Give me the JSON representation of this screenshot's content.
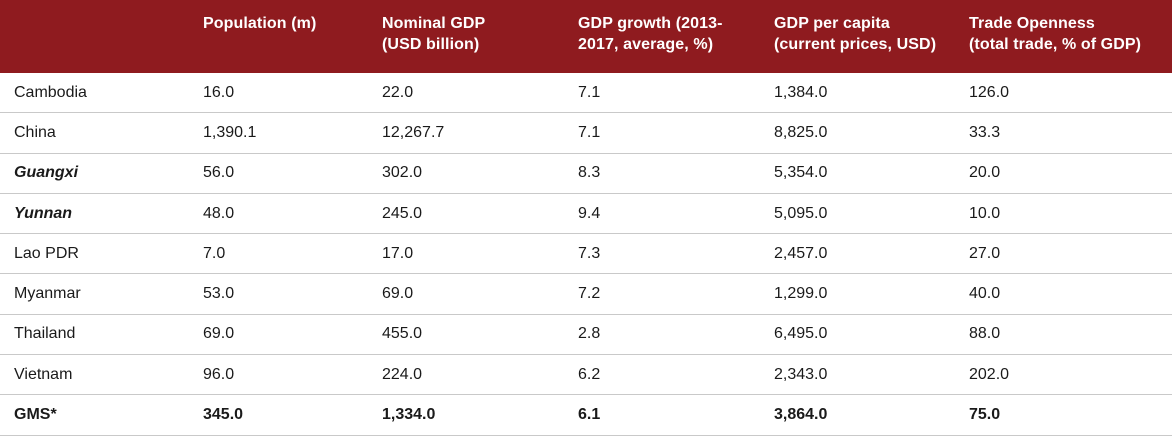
{
  "table": {
    "headers": [
      "",
      "Population (m)",
      "Nominal GDP\n(USD billion)",
      "GDP growth (2013-\n2017, average, %)",
      "GDP per capita\n(current prices, USD)",
      "Trade Openness\n(total trade, % of GDP)"
    ],
    "rows": [
      [
        "Cambodia",
        "16.0",
        "22.0",
        "7.1",
        "1,384.0",
        "126.0"
      ],
      [
        "China",
        "1,390.1",
        "12,267.7",
        "7.1",
        "8,825.0",
        "33.3"
      ],
      [
        "Guangxi",
        "56.0",
        "302.0",
        "8.3",
        "5,354.0",
        "20.0"
      ],
      [
        "Yunnan",
        "48.0",
        "245.0",
        "9.4",
        "5,095.0",
        "10.0"
      ],
      [
        "Lao PDR",
        "7.0",
        "17.0",
        "7.3",
        "2,457.0",
        "27.0"
      ],
      [
        "Myanmar",
        "53.0",
        "69.0",
        "7.2",
        "1,299.0",
        "40.0"
      ],
      [
        "Thailand",
        "69.0",
        "455.0",
        "2.8",
        "6,495.0",
        "88.0"
      ],
      [
        "Vietnam",
        "96.0",
        "224.0",
        "6.2",
        "2,343.0",
        "202.0"
      ],
      [
        "GMS*",
        "345.0",
        "1,334.0",
        "6.1",
        "3,864.0",
        "75.0"
      ]
    ]
  },
  "colors": {
    "header_background": "#8f1b1f",
    "header_text": "#ffffff",
    "row_divider": "#c9c9c9"
  }
}
